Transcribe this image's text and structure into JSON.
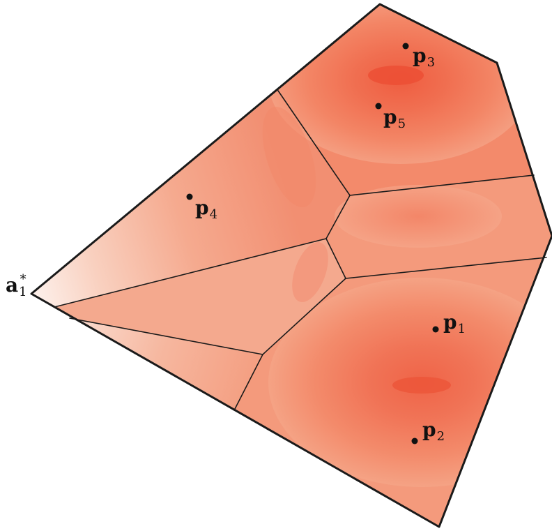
{
  "points": [
    {
      "id": "p1",
      "base": "p",
      "index": "1"
    },
    {
      "id": "p2",
      "base": "p",
      "index": "2"
    },
    {
      "id": "p3",
      "base": "p",
      "index": "3"
    },
    {
      "id": "p4",
      "base": "p",
      "index": "4"
    },
    {
      "id": "p5",
      "base": "p",
      "index": "5"
    }
  ],
  "vertex_label": {
    "base": "a",
    "sub": "1",
    "sup": "*"
  },
  "colors": {
    "region_light": "#fbe8e0",
    "region_mid": "#f4a383",
    "region_dark": "#ee5a3e",
    "edge": "#1a1a1a",
    "point": "#111111"
  }
}
